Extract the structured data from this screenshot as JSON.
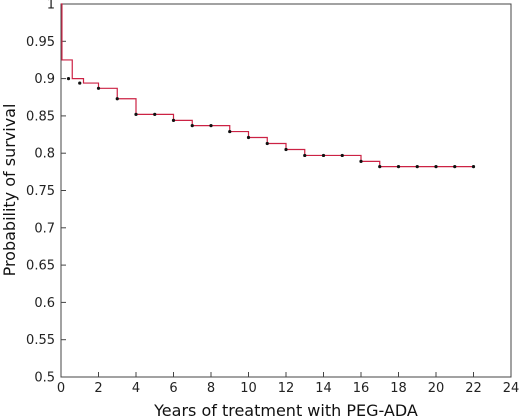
{
  "chart_data": {
    "type": "line",
    "title": "",
    "xlabel": "Years of treatment with PEG-ADA",
    "ylabel": "Probability of survival",
    "xlim": [
      0,
      24
    ],
    "ylim": [
      0.5,
      1
    ],
    "xticks": [
      0,
      2,
      4,
      6,
      8,
      10,
      12,
      14,
      16,
      18,
      20,
      22,
      24
    ],
    "yticks": [
      0.5,
      0.55,
      0.6,
      0.65,
      0.7,
      0.75,
      0.8,
      0.85,
      0.9,
      0.95,
      1
    ],
    "grid": false,
    "line_color": "#cc2244",
    "marker_color": "#111111",
    "series": [
      {
        "step": [
          [
            0,
            1.0
          ],
          [
            0.05,
            0.925
          ],
          [
            0.6,
            0.9
          ],
          [
            1.2,
            0.894
          ],
          [
            2.0,
            0.887
          ],
          [
            3.0,
            0.873
          ],
          [
            4.0,
            0.852
          ],
          [
            6.0,
            0.844
          ],
          [
            7.0,
            0.837
          ],
          [
            9.0,
            0.829
          ],
          [
            10.0,
            0.821
          ],
          [
            11.0,
            0.813
          ],
          [
            12.0,
            0.805
          ],
          [
            13.0,
            0.797
          ],
          [
            16.0,
            0.789
          ],
          [
            17.0,
            0.782
          ],
          [
            22.0,
            0.782
          ]
        ],
        "censored": [
          [
            0.4,
            0.9
          ],
          [
            1.0,
            0.894
          ],
          [
            2.0,
            0.887
          ],
          [
            3.0,
            0.873
          ],
          [
            4.0,
            0.852
          ],
          [
            5.0,
            0.852
          ],
          [
            6.0,
            0.844
          ],
          [
            7.0,
            0.837
          ],
          [
            8.0,
            0.837
          ],
          [
            9.0,
            0.829
          ],
          [
            10.0,
            0.821
          ],
          [
            11.0,
            0.813
          ],
          [
            12.0,
            0.805
          ],
          [
            13.0,
            0.797
          ],
          [
            14.0,
            0.797
          ],
          [
            15.0,
            0.797
          ],
          [
            16.0,
            0.789
          ],
          [
            17.0,
            0.782
          ],
          [
            18.0,
            0.782
          ],
          [
            19.0,
            0.782
          ],
          [
            20.0,
            0.782
          ],
          [
            21.0,
            0.782
          ],
          [
            22.0,
            0.782
          ]
        ]
      }
    ]
  }
}
